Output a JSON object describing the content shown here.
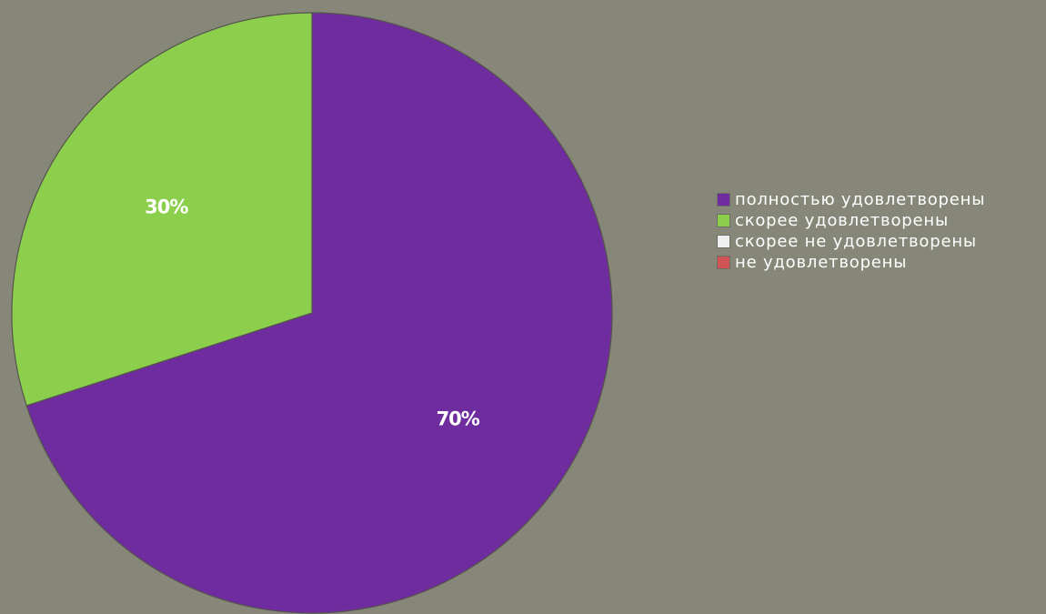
{
  "chart_data": {
    "type": "pie",
    "title": "",
    "slices": [
      {
        "name": "полностью удовлетворены",
        "value": 70,
        "label": "70%",
        "color": "#6e2c9e"
      },
      {
        "name": "скорее удовлетворены",
        "value": 30,
        "label": "30%",
        "color": "#8ccf4d"
      },
      {
        "name": "скорее не удовлетворены",
        "value": 0,
        "label": "",
        "color": "#efefef"
      },
      {
        "name": "не удовлетворены",
        "value": 0,
        "label": "",
        "color": "#cf5454"
      }
    ],
    "start_angle_deg": 0,
    "direction": "clockwise",
    "legend_position": "right",
    "slice_border_color": "#55554c",
    "background_color": "#868779"
  }
}
